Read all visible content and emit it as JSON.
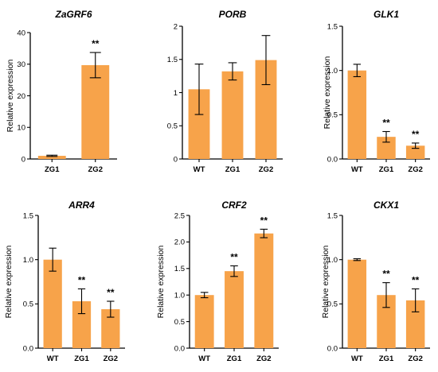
{
  "bar_color": "#F7A34A",
  "chart_data": [
    {
      "type": "bar",
      "title": "ZaGRF6",
      "ylabel": "Relative expression",
      "categories": [
        "ZG1",
        "ZG2"
      ],
      "values": [
        1.0,
        29.7
      ],
      "errors": [
        0.2,
        4.0
      ],
      "significance": [
        "",
        "**"
      ],
      "ylim": [
        0,
        40
      ],
      "yticks": [
        "0",
        "10",
        "20",
        "30",
        "40"
      ]
    },
    {
      "type": "bar",
      "title": "PORB",
      "ylabel": "",
      "categories": [
        "WT",
        "ZG1",
        "ZG2"
      ],
      "values": [
        1.05,
        1.32,
        1.49
      ],
      "errors": [
        0.38,
        0.13,
        0.37
      ],
      "significance": [
        "",
        "",
        ""
      ],
      "ylim": [
        0,
        2
      ],
      "yticks": [
        "0",
        "0.5",
        "1",
        "1.5",
        "2"
      ]
    },
    {
      "type": "bar",
      "title": "GLK1",
      "ylabel": "Relative expression",
      "categories": [
        "WT",
        "ZG1",
        "ZG2"
      ],
      "values": [
        1.0,
        0.25,
        0.15
      ],
      "errors": [
        0.07,
        0.06,
        0.03
      ],
      "significance": [
        "",
        "**",
        "**"
      ],
      "ylim": [
        0,
        1.5
      ],
      "yticks": [
        "0.0",
        "0.5",
        "1.0",
        "1.5"
      ]
    },
    {
      "type": "bar",
      "title": "ARR4",
      "ylabel": "Relative expression",
      "categories": [
        "WT",
        "ZG1",
        "ZG2"
      ],
      "values": [
        1.0,
        0.53,
        0.44
      ],
      "errors": [
        0.13,
        0.14,
        0.09
      ],
      "significance": [
        "",
        "**",
        "**"
      ],
      "ylim": [
        0,
        1.5
      ],
      "yticks": [
        "0.0",
        "0.5",
        "1.0",
        "1.5"
      ]
    },
    {
      "type": "bar",
      "title": "CRF2",
      "ylabel": "Relative expression",
      "categories": [
        "WT",
        "ZG1",
        "ZG2"
      ],
      "values": [
        1.0,
        1.45,
        2.16
      ],
      "errors": [
        0.05,
        0.1,
        0.08
      ],
      "significance": [
        "",
        "**",
        "**"
      ],
      "ylim": [
        0,
        2.5
      ],
      "yticks": [
        "0.0",
        "0.5",
        "1.0",
        "1.5",
        "2.0",
        "2.5"
      ]
    },
    {
      "type": "bar",
      "title": "CKX1",
      "ylabel": "Relative expression",
      "categories": [
        "WT",
        "ZG1",
        "ZG2"
      ],
      "values": [
        1.0,
        0.6,
        0.54
      ],
      "errors": [
        0.01,
        0.14,
        0.13
      ],
      "significance": [
        "",
        "**",
        "**"
      ],
      "ylim": [
        0,
        1.5
      ],
      "yticks": [
        "0.0",
        "0.5",
        "1.0",
        "1.5"
      ]
    }
  ]
}
